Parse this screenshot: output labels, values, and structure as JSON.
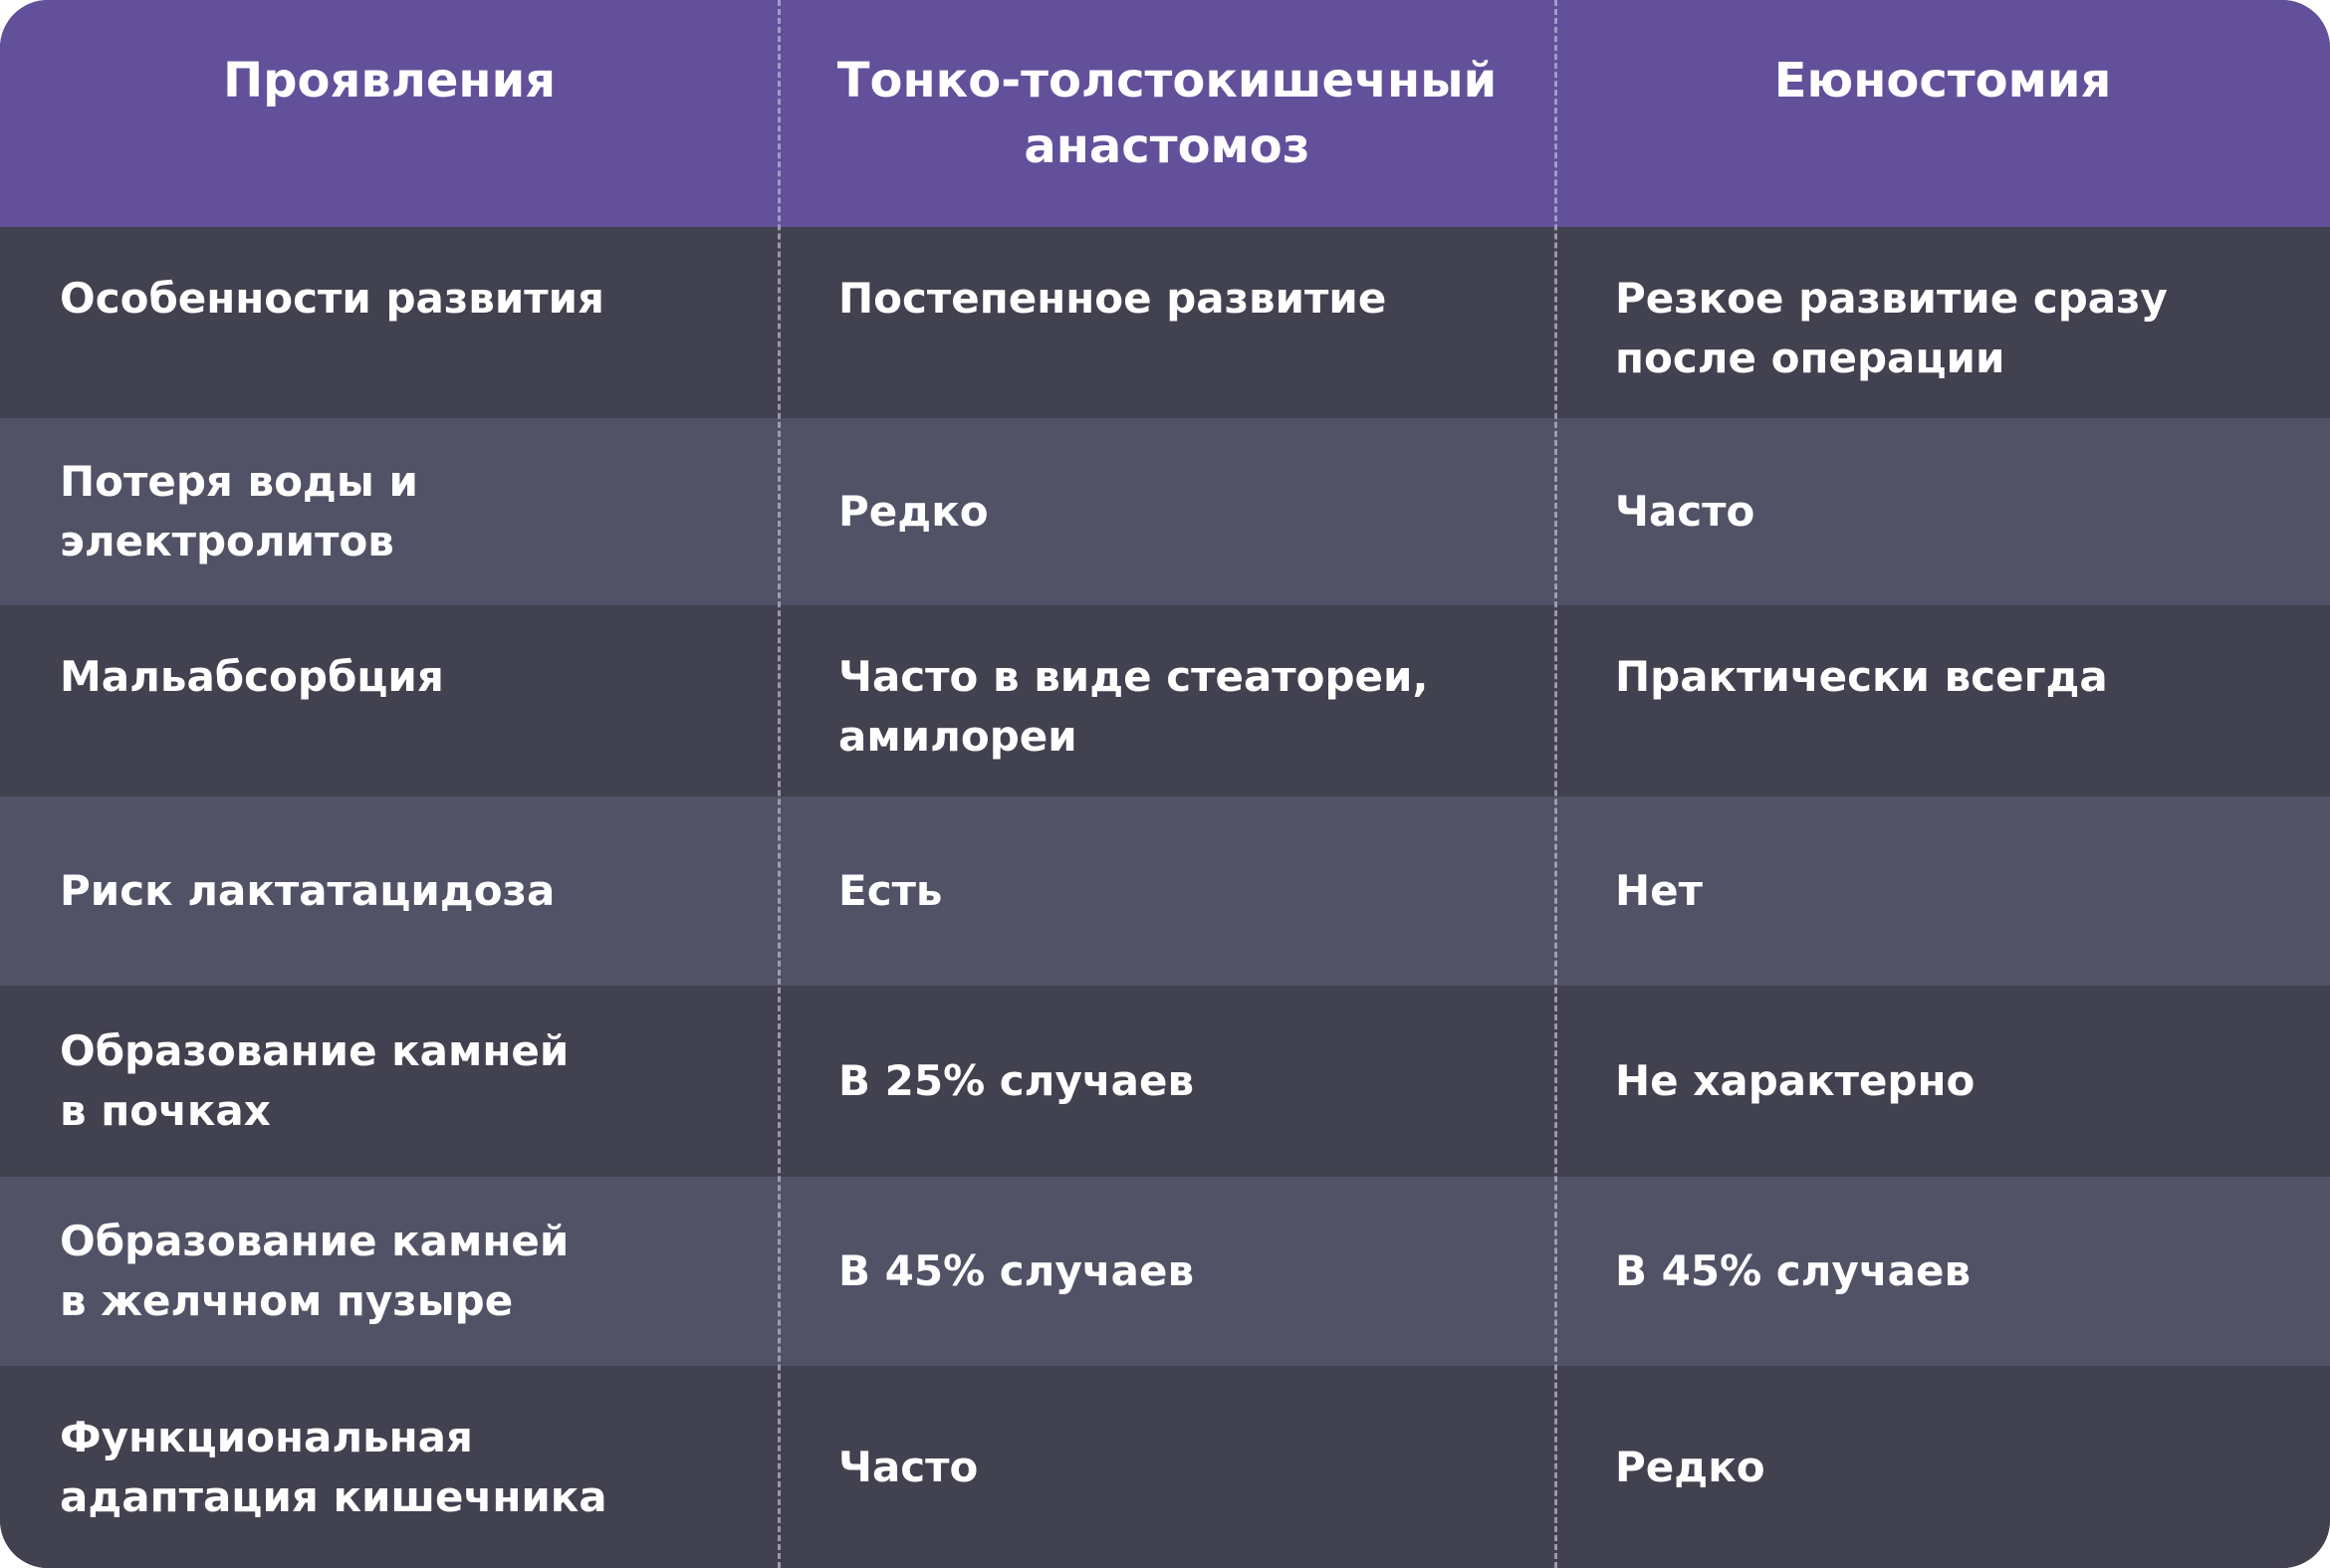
{
  "header": {
    "col1": "Проявления",
    "col2": "Тонко-толстокишечный\nанастомоз",
    "col3": "Еюностомия"
  },
  "rows": [
    {
      "feature": "Особенности развития",
      "anastomosis": "Постепенное развитие",
      "jejunostomy": "Резкое развитие сразу\nпосле операции"
    },
    {
      "feature": "Потеря воды и электролитов",
      "anastomosis": "Редко",
      "jejunostomy": "Часто"
    },
    {
      "feature": "Мальабсорбция",
      "anastomosis": "Часто в виде стеатореи,\nамилореи",
      "jejunostomy": "Практически всегда"
    },
    {
      "feature": "Риск лактатацидоза",
      "anastomosis": "Есть",
      "jejunostomy": "Нет"
    },
    {
      "feature": "Образование камней\nв почках",
      "anastomosis": "В 25% случаев",
      "jejunostomy": "Не характерно"
    },
    {
      "feature": "Образование камней\nв желчном пузыре",
      "anastomosis": "В 45% случаев",
      "jejunostomy": "В 45% случаев"
    },
    {
      "feature": "Функциональная\nадаптация кишечника",
      "anastomosis": "Часто",
      "jejunostomy": "Редко"
    }
  ],
  "colors": {
    "header_bg": "#62509a",
    "row_dark": "#42414f",
    "row_light": "#525266",
    "text": "#ffffff"
  }
}
